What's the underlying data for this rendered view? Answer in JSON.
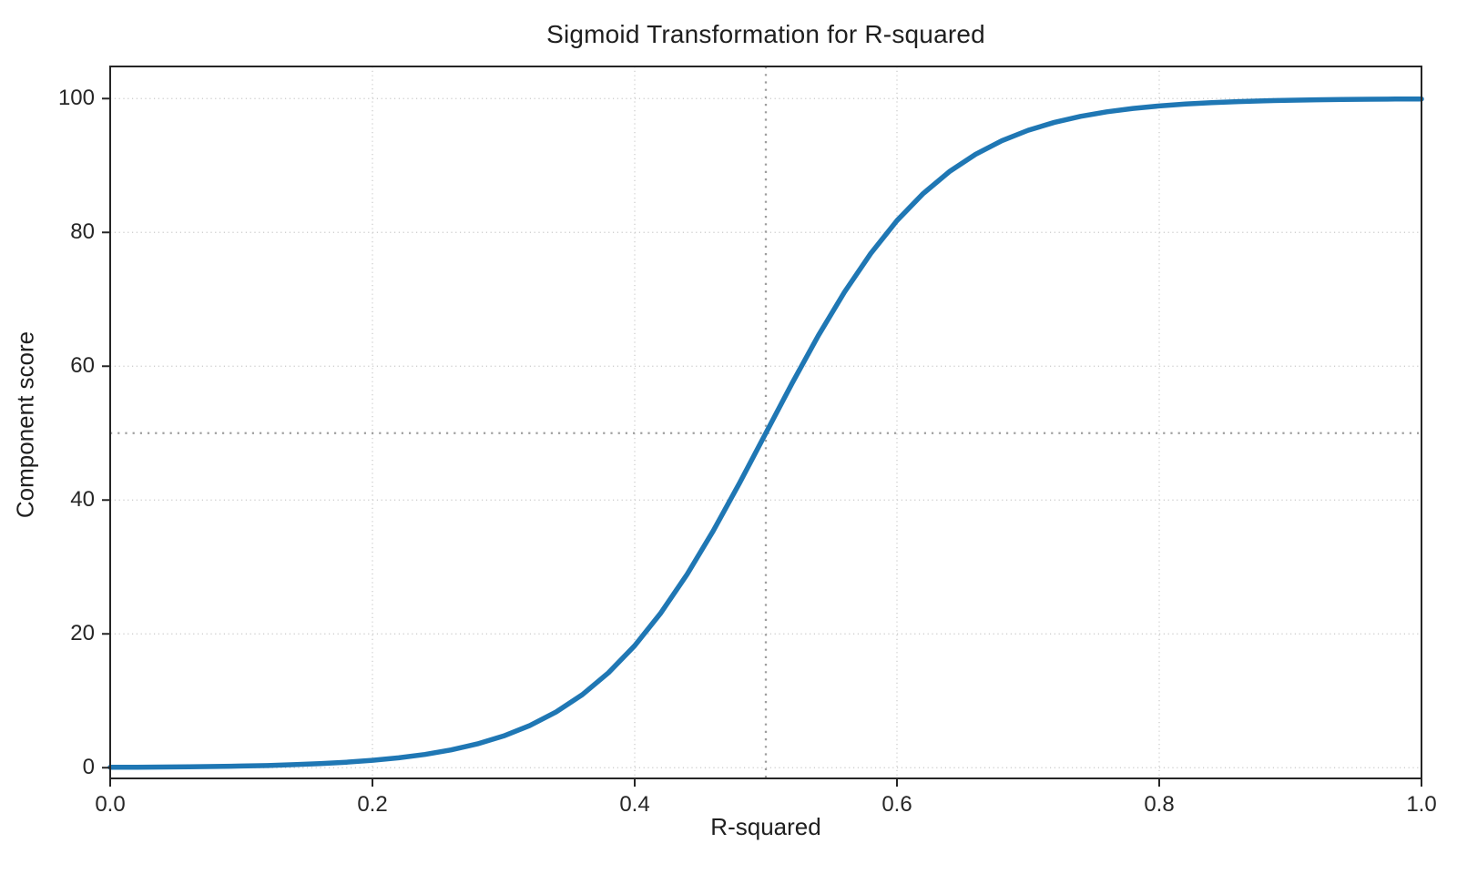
{
  "chart_data": {
    "type": "line",
    "title": "Sigmoid Transformation for R-squared",
    "xlabel": "R-squared",
    "ylabel": "Component score",
    "x_tick_labels": [
      "0.0",
      "0.2",
      "0.4",
      "0.6",
      "0.8",
      "1.0"
    ],
    "x_tick_values": [
      0.0,
      0.2,
      0.4,
      0.6,
      0.8,
      1.0
    ],
    "y_tick_labels": [
      "0",
      "20",
      "40",
      "60",
      "80",
      "100"
    ],
    "y_tick_values": [
      0,
      20,
      40,
      60,
      80,
      100
    ],
    "xlim": [
      0.0,
      1.0
    ],
    "ylim": [
      -1.6,
      104.8
    ],
    "grid": true,
    "legend": "none",
    "series": [
      {
        "name": "sigmoid",
        "description": "Component score = 100 / (1 + exp(-15 * (R-squared - 0.5)))",
        "color": "#1f77b4",
        "line_width": 5.5,
        "x": [
          0.0,
          0.02,
          0.04,
          0.06,
          0.08,
          0.1,
          0.12,
          0.14,
          0.16,
          0.18,
          0.2,
          0.22,
          0.24,
          0.26,
          0.28,
          0.3,
          0.32,
          0.34,
          0.36,
          0.38,
          0.4,
          0.42,
          0.44,
          0.46,
          0.48,
          0.5,
          0.52,
          0.54,
          0.56,
          0.58,
          0.6,
          0.62,
          0.64,
          0.66,
          0.68,
          0.7,
          0.72,
          0.74,
          0.76,
          0.78,
          0.8,
          0.82,
          0.84,
          0.86,
          0.88,
          0.9,
          0.92,
          0.94,
          0.96,
          0.98,
          1.0
        ],
        "y": [
          0.06,
          0.07,
          0.1,
          0.14,
          0.18,
          0.25,
          0.33,
          0.45,
          0.61,
          0.82,
          1.1,
          1.48,
          1.98,
          2.66,
          3.56,
          4.74,
          6.3,
          8.32,
          10.91,
          14.19,
          18.24,
          23.15,
          28.91,
          35.43,
          42.56,
          50.0,
          57.44,
          64.57,
          71.09,
          76.85,
          81.76,
          85.81,
          89.09,
          91.68,
          93.7,
          95.26,
          96.44,
          97.34,
          98.02,
          98.52,
          98.9,
          99.18,
          99.39,
          99.55,
          99.67,
          99.75,
          99.82,
          99.86,
          99.9,
          99.93,
          99.94
        ]
      }
    ],
    "reference_lines": {
      "vertical_x": 0.5,
      "horizontal_y": 50,
      "color": "#9e9e9e",
      "style": "dotted"
    },
    "colors": {
      "curve": "#1f77b4",
      "gridline": "#c9c9c9",
      "reference": "#9e9e9e",
      "spine": "#262626",
      "text": "#1f1f1f",
      "background": "#ffffff"
    }
  }
}
